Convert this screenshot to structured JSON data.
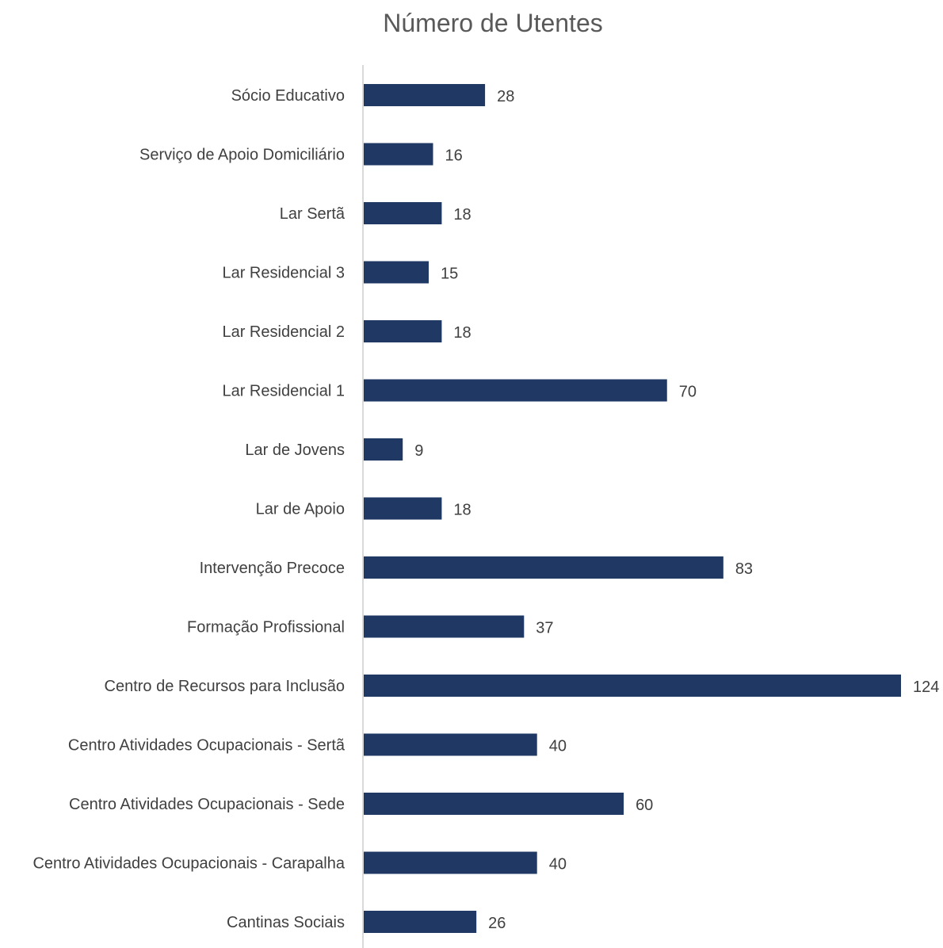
{
  "chart_data": {
    "type": "bar",
    "orientation": "horizontal",
    "title": "Número de Utentes",
    "categories": [
      "Sócio Educativo",
      "Serviço de Apoio Domiciliário",
      "Lar Sertã",
      "Lar Residencial 3",
      "Lar Residencial 2",
      "Lar Residencial 1",
      "Lar de Jovens",
      "Lar de Apoio",
      "Intervenção Precoce",
      "Formação Profissional",
      "Centro de Recursos para Inclusão",
      "Centro Atividades Ocupacionais - Sertã",
      "Centro Atividades Ocupacionais - Sede",
      "Centro Atividades Ocupacionais - Carapalha",
      "Cantinas Sociais"
    ],
    "values": [
      28,
      16,
      18,
      15,
      18,
      70,
      9,
      18,
      83,
      37,
      124,
      40,
      60,
      40,
      26
    ],
    "xlim": [
      0,
      124
    ],
    "bar_color": "#203864",
    "grid": false,
    "legend": "none",
    "data_labels": true
  }
}
